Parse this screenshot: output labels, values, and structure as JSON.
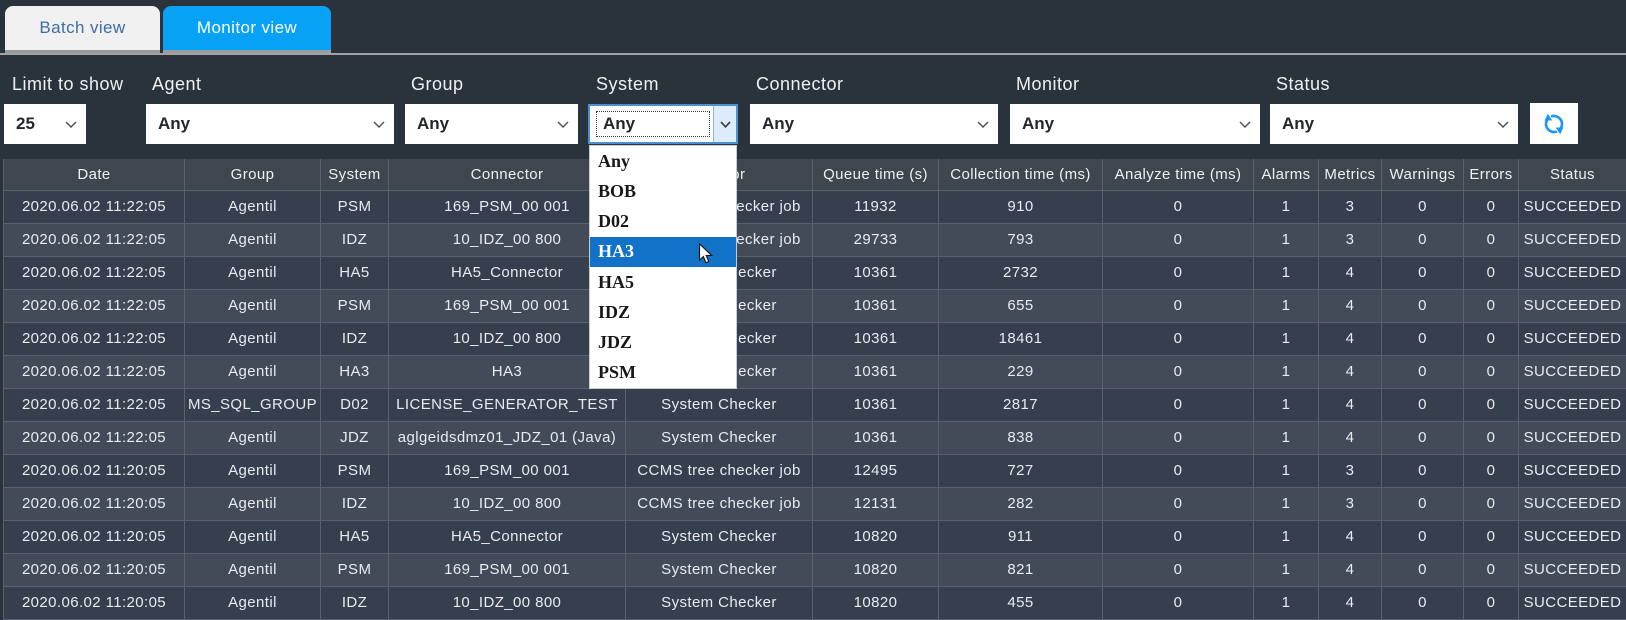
{
  "tabs": [
    {
      "label": "Batch view",
      "active": false
    },
    {
      "label": "Monitor view",
      "active": true
    }
  ],
  "filters": {
    "limit": {
      "label": "Limit to show",
      "value": "25"
    },
    "agent": {
      "label": "Agent",
      "value": "Any"
    },
    "group": {
      "label": "Group",
      "value": "Any"
    },
    "system": {
      "label": "System",
      "value": "Any"
    },
    "connector": {
      "label": "Connector",
      "value": "Any"
    },
    "monitor": {
      "label": "Monitor",
      "value": "Any"
    },
    "status": {
      "label": "Status",
      "value": "Any"
    }
  },
  "system_dropdown": {
    "options": [
      "Any",
      "BOB",
      "D02",
      "HA3",
      "HA5",
      "IDZ",
      "JDZ",
      "PSM"
    ],
    "highlighted": "HA3"
  },
  "table": {
    "columns": [
      "Date",
      "Group",
      "System",
      "Connector",
      "Monitor",
      "Queue time (s)",
      "Collection time (ms)",
      "Analyze time (ms)",
      "Alarms",
      "Metrics",
      "Warnings",
      "Errors",
      "Status"
    ],
    "rows": [
      [
        "2020.06.02 11:22:05",
        "Agentil",
        "PSM",
        "169_PSM_00 001",
        "CCMS tree checker job",
        "11932",
        "910",
        "0",
        "1",
        "3",
        "0",
        "0",
        "SUCCEEDED"
      ],
      [
        "2020.06.02 11:22:05",
        "Agentil",
        "IDZ",
        "10_IDZ_00 800",
        "CCMS tree checker job",
        "29733",
        "793",
        "0",
        "1",
        "3",
        "0",
        "0",
        "SUCCEEDED"
      ],
      [
        "2020.06.02 11:22:05",
        "Agentil",
        "HA5",
        "HA5_Connector",
        "System Checker",
        "10361",
        "2732",
        "0",
        "1",
        "4",
        "0",
        "0",
        "SUCCEEDED"
      ],
      [
        "2020.06.02 11:22:05",
        "Agentil",
        "PSM",
        "169_PSM_00 001",
        "System Checker",
        "10361",
        "655",
        "0",
        "1",
        "4",
        "0",
        "0",
        "SUCCEEDED"
      ],
      [
        "2020.06.02 11:22:05",
        "Agentil",
        "IDZ",
        "10_IDZ_00 800",
        "System Checker",
        "10361",
        "18461",
        "0",
        "1",
        "4",
        "0",
        "0",
        "SUCCEEDED"
      ],
      [
        "2020.06.02 11:22:05",
        "Agentil",
        "HA3",
        "HA3",
        "System Checker",
        "10361",
        "229",
        "0",
        "1",
        "4",
        "0",
        "0",
        "SUCCEEDED"
      ],
      [
        "2020.06.02 11:22:05",
        "MS_SQL_GROUP",
        "D02",
        "LICENSE_GENERATOR_TEST",
        "System Checker",
        "10361",
        "2817",
        "0",
        "1",
        "4",
        "0",
        "0",
        "SUCCEEDED"
      ],
      [
        "2020.06.02 11:22:05",
        "Agentil",
        "JDZ",
        "aglgeidsdmz01_JDZ_01 (Java)",
        "System Checker",
        "10361",
        "838",
        "0",
        "1",
        "4",
        "0",
        "0",
        "SUCCEEDED"
      ],
      [
        "2020.06.02 11:20:05",
        "Agentil",
        "PSM",
        "169_PSM_00 001",
        "CCMS tree checker job",
        "12495",
        "727",
        "0",
        "1",
        "3",
        "0",
        "0",
        "SUCCEEDED"
      ],
      [
        "2020.06.02 11:20:05",
        "Agentil",
        "IDZ",
        "10_IDZ_00 800",
        "CCMS tree checker job",
        "12131",
        "282",
        "0",
        "1",
        "3",
        "0",
        "0",
        "SUCCEEDED"
      ],
      [
        "2020.06.02 11:20:05",
        "Agentil",
        "HA5",
        "HA5_Connector",
        "System Checker",
        "10820",
        "911",
        "0",
        "1",
        "4",
        "0",
        "0",
        "SUCCEEDED"
      ],
      [
        "2020.06.02 11:20:05",
        "Agentil",
        "PSM",
        "169_PSM_00 001",
        "System Checker",
        "10820",
        "821",
        "0",
        "1",
        "4",
        "0",
        "0",
        "SUCCEEDED"
      ],
      [
        "2020.06.02 11:20:05",
        "Agentil",
        "IDZ",
        "10_IDZ_00 800",
        "System Checker",
        "10820",
        "455",
        "0",
        "1",
        "4",
        "0",
        "0",
        "SUCCEEDED"
      ]
    ]
  },
  "icons": {
    "refresh": "refresh-icon",
    "chevron": "chevron-down-icon",
    "cursor": "mouse-cursor"
  },
  "colors": {
    "accent_blue": "#07a1f6",
    "highlight_blue": "#1272c8",
    "page_bg": "#2a333c",
    "row_odd": "#37404f",
    "row_even": "#444b58",
    "header_bg": "#3e454e"
  }
}
